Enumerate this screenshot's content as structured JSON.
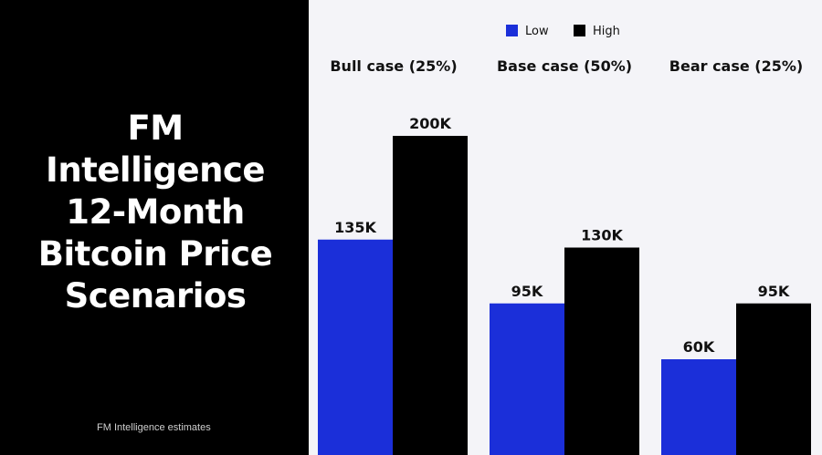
{
  "title": "FM Intelligence 12-Month Bitcoin Price Scenarios",
  "source": "FM Intelligence estimates",
  "colors": {
    "low": "#1b2fd9",
    "high": "#000000",
    "left_background": "#000000",
    "chart_background": "#f4f4f8"
  },
  "chart_data": {
    "type": "bar",
    "categories": [
      "Bull case (25%)",
      "Base case (50%)",
      "Bear case (25%)"
    ],
    "series": [
      {
        "name": "Low",
        "values": [
          135,
          95,
          60
        ],
        "labels": [
          "135K",
          "95K",
          "60K"
        ],
        "color": "#1b2fd9"
      },
      {
        "name": "High",
        "values": [
          200,
          130,
          95
        ],
        "labels": [
          "200K",
          "130K",
          "95K"
        ],
        "color": "#000000"
      }
    ],
    "legend_position": "top-center",
    "grid": false
  }
}
